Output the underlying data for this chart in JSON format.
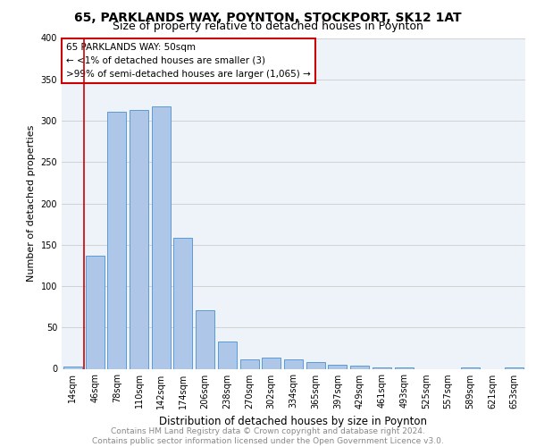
{
  "title": "65, PARKLANDS WAY, POYNTON, STOCKPORT, SK12 1AT",
  "subtitle": "Size of property relative to detached houses in Poynton",
  "xlabel": "Distribution of detached houses by size in Poynton",
  "ylabel": "Number of detached properties",
  "footer": "Contains HM Land Registry data © Crown copyright and database right 2024.\nContains public sector information licensed under the Open Government Licence v3.0.",
  "categories": [
    "14sqm",
    "46sqm",
    "78sqm",
    "110sqm",
    "142sqm",
    "174sqm",
    "206sqm",
    "238sqm",
    "270sqm",
    "302sqm",
    "334sqm",
    "365sqm",
    "397sqm",
    "429sqm",
    "461sqm",
    "493sqm",
    "525sqm",
    "557sqm",
    "589sqm",
    "621sqm",
    "653sqm"
  ],
  "values": [
    3,
    137,
    311,
    313,
    317,
    158,
    71,
    33,
    11,
    14,
    11,
    8,
    5,
    4,
    2,
    2,
    0,
    0,
    2,
    0,
    2
  ],
  "bar_color": "#aec6e8",
  "bar_edge_color": "#5b9bd5",
  "annotation_line1": "65 PARKLANDS WAY: 50sqm",
  "annotation_line2": "← <1% of detached houses are smaller (3)",
  "annotation_line3": ">99% of semi-detached houses are larger (1,065) →",
  "annotation_box_color": "#ffffff",
  "annotation_box_edge_color": "#cc0000",
  "vline_color": "#cc0000",
  "grid_color": "#cccccc",
  "background_color": "#eef2f9",
  "title_fontsize": 10,
  "subtitle_fontsize": 9,
  "xlabel_fontsize": 8.5,
  "ylabel_fontsize": 8,
  "tick_fontsize": 7,
  "footer_fontsize": 6.5,
  "annotation_fontsize": 7.5
}
